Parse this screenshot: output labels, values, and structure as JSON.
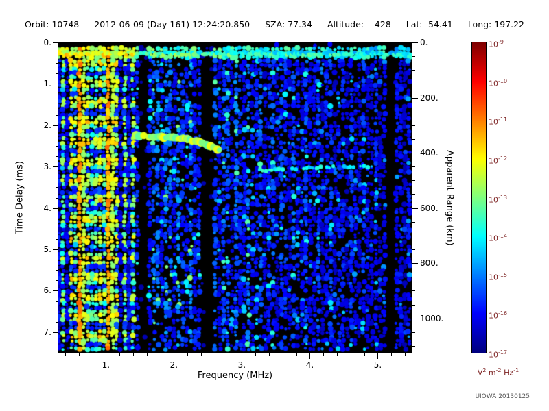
{
  "header": {
    "items": [
      "Orbit: 10748",
      "2012-06-09 (Day 161) 12:24:20.850",
      "SZA: 77.34",
      "Altitude:    428",
      "Lat: -54.41",
      "Long: 197.22"
    ]
  },
  "footer": {
    "credit": "UIOWA 20130125"
  },
  "chart_data": {
    "type": "heatmap",
    "title": "",
    "xlabel": "Frequency (MHz)",
    "ylabel": "Time Delay (ms)",
    "y2label": "Apparent Range (km)",
    "x_range_mhz": [
      0.3,
      5.5
    ],
    "y_range_ms": [
      0,
      7.5
    ],
    "y2_range_km": [
      0,
      1125
    ],
    "x_ticks": [
      {
        "v": 1,
        "label": "1."
      },
      {
        "v": 2,
        "label": "2."
      },
      {
        "v": 3,
        "label": "3."
      },
      {
        "v": 4,
        "label": "4."
      },
      {
        "v": 5,
        "label": "5."
      }
    ],
    "x_minor_step_mhz": 0.2,
    "y_ticks": [
      {
        "v": 0,
        "label": "0."
      },
      {
        "v": 1,
        "label": "1."
      },
      {
        "v": 2,
        "label": "2."
      },
      {
        "v": 3,
        "label": "3."
      },
      {
        "v": 4,
        "label": "4."
      },
      {
        "v": 5,
        "label": "5."
      },
      {
        "v": 6,
        "label": "6."
      },
      {
        "v": 7,
        "label": "7."
      }
    ],
    "y_minor_step_ms": 0.25,
    "y2_ticks": [
      {
        "v": 0,
        "label": "0."
      },
      {
        "v": 200,
        "label": "200."
      },
      {
        "v": 400,
        "label": "400."
      },
      {
        "v": 600,
        "label": "600."
      },
      {
        "v": 800,
        "label": "800."
      },
      {
        "v": 1000,
        "label": "1000."
      }
    ],
    "y2_minor_step_km": 50,
    "colorbar": {
      "scale": "log",
      "colormap": "jet",
      "tick_exponents": [
        -9,
        -10,
        -11,
        -12,
        -13,
        -14,
        -15,
        -16,
        -17
      ],
      "unit_parts": [
        {
          "base": "V",
          "sup": "2"
        },
        {
          "base": "m",
          "sup": "-2"
        },
        {
          "base": "Hz",
          "sup": "-1"
        }
      ],
      "label_color": "#7b1f1f"
    },
    "features": {
      "surface_echo_delay_ms": 0.27,
      "noise_band_max_mhz": 1.45,
      "plasma_lines_mhz": [
        0.62,
        1.05
      ],
      "data_gap_columns_mhz": [
        1.55,
        2.5,
        5.18
      ],
      "ionosphere_echo_trace": [
        [
          1.45,
          2.25
        ],
        [
          1.7,
          2.28
        ],
        [
          1.95,
          2.3
        ],
        [
          2.2,
          2.34
        ],
        [
          2.4,
          2.42
        ],
        [
          2.55,
          2.5
        ],
        [
          2.68,
          2.6
        ]
      ],
      "second_echo_trace": [
        [
          3.05,
          3.12
        ],
        [
          3.5,
          3.07
        ],
        [
          4.0,
          3.03
        ],
        [
          4.5,
          3.0
        ],
        [
          4.9,
          3.0
        ]
      ]
    }
  }
}
